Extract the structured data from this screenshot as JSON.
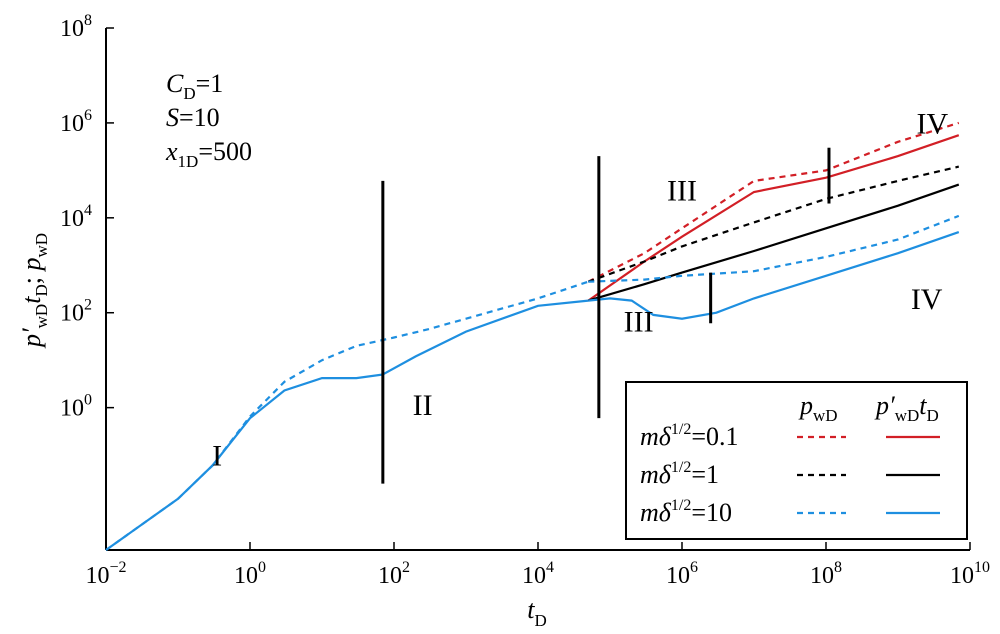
{
  "chart_data": {
    "type": "line",
    "xlabel": "t",
    "xlabel_sub": "D",
    "ylabel": "p′wDtD; pwD",
    "x_scale": "log",
    "y_scale": "log",
    "xlim": [
      0.01,
      10000000000
    ],
    "ylim": [
      0.001,
      100000000
    ],
    "x_ticks": [
      {
        "base": "10",
        "exp": "−2",
        "value": 0.01
      },
      {
        "base": "10",
        "exp": "0",
        "value": 1
      },
      {
        "base": "10",
        "exp": "2",
        "value": 100
      },
      {
        "base": "10",
        "exp": "4",
        "value": 10000
      },
      {
        "base": "10",
        "exp": "6",
        "value": 1000000
      },
      {
        "base": "10",
        "exp": "8",
        "value": 100000000
      },
      {
        "base": "10",
        "exp": "10",
        "value": 10000000000
      }
    ],
    "y_ticks": [
      {
        "base": "10",
        "exp": "0",
        "value": 1
      },
      {
        "base": "10",
        "exp": "2",
        "value": 100
      },
      {
        "base": "10",
        "exp": "4",
        "value": 10000
      },
      {
        "base": "10",
        "exp": "6",
        "value": 1000000
      },
      {
        "base": "10",
        "exp": "8",
        "value": 100000000
      }
    ],
    "params": [
      {
        "sym": "C",
        "sub": "D",
        "val": "=1"
      },
      {
        "sym": "S",
        "sub": "",
        "val": "=10"
      },
      {
        "sym": "x",
        "sub": "1D",
        "val": "=500"
      }
    ],
    "legend": {
      "header_pwd": "p",
      "header_pwd_sub": "wD",
      "header_deriv": "p′",
      "header_deriv_sub": "wD",
      "header_deriv_t": "t",
      "header_deriv_t_sub": "D",
      "label_prefix": "mδ",
      "label_sup": "1/2",
      "location": "lower-right"
    },
    "colors": {
      "red": "#d21f26",
      "black": "#000000",
      "blue": "#1e8fe0"
    },
    "common_pwd": {
      "x": [
        0.01,
        0.1,
        0.3,
        1,
        3,
        10,
        30,
        100,
        300,
        1000,
        10000,
        50000
      ],
      "y": [
        0.001,
        0.012,
        0.06,
        0.65,
        3.5,
        10,
        20,
        30,
        45,
        75,
        200,
        450
      ]
    },
    "common_deriv": {
      "x": [
        0.01,
        0.1,
        0.3,
        1,
        3,
        10,
        30,
        70,
        200,
        1000,
        10000,
        50000
      ],
      "y": [
        0.001,
        0.012,
        0.06,
        0.6,
        2.3,
        4.2,
        4.2,
        5,
        12,
        40,
        140,
        180
      ]
    },
    "series": [
      {
        "label_value": "=0.1",
        "color": "red",
        "pwd": {
          "x": [
            50000,
            300000,
            1000000,
            10000000,
            100000000,
            1000000000,
            7000000000
          ],
          "y": [
            450,
            1800,
            6000,
            60000,
            100000,
            400000,
            1000000
          ]
        },
        "deriv": {
          "x": [
            50000,
            300000,
            1000000,
            10000000,
            100000000,
            1000000000,
            7000000000
          ],
          "y": [
            180,
            1200,
            4000,
            35000,
            70000,
            200000,
            550000
          ]
        }
      },
      {
        "label_value": "=1",
        "color": "black",
        "pwd": {
          "x": [
            50000,
            300000,
            1000000,
            10000000,
            100000000,
            1000000000,
            7000000000
          ],
          "y": [
            450,
            1200,
            2500,
            8000,
            25000,
            60000,
            120000
          ]
        },
        "deriv": {
          "x": [
            50000,
            300000,
            1000000,
            10000000,
            100000000,
            1000000000,
            7000000000
          ],
          "y": [
            180,
            400,
            700,
            2000,
            6000,
            18000,
            50000
          ]
        }
      },
      {
        "label_value": "=10",
        "color": "blue",
        "pwd": {
          "x": [
            50000,
            300000,
            1000000,
            10000000,
            100000000,
            1000000000,
            7000000000
          ],
          "y": [
            450,
            500,
            600,
            750,
            1500,
            3500,
            11000
          ]
        },
        "deriv": {
          "x": [
            50000,
            100000,
            200000,
            400000,
            1000000,
            3000000,
            10000000,
            100000000,
            1000000000,
            7000000000
          ],
          "y": [
            180,
            200,
            180,
            90,
            75,
            100,
            200,
            600,
            1800,
            5000
          ]
        }
      }
    ],
    "vertical_markers": [
      {
        "x": 70,
        "y_low": 0.025,
        "y_high": 60000
      },
      {
        "x": 70000,
        "y_low": 0.6,
        "y_high": 200000
      },
      {
        "x": 2500000,
        "y_low": 60,
        "y_high": 700
      },
      {
        "x": 110000000,
        "y_low": 20000,
        "y_high": 300000
      }
    ],
    "region_labels": [
      {
        "text": "I",
        "x": 0.35,
        "y": 0.06
      },
      {
        "text": "II",
        "x": 250,
        "y": 0.7
      },
      {
        "text": "III",
        "x": 1000000,
        "y": 23000
      },
      {
        "text": "III",
        "x": 250000,
        "y": 40
      },
      {
        "text": "IV",
        "x": 3000000000,
        "y": 600000
      },
      {
        "text": "IV",
        "x": 2500000000,
        "y": 120
      }
    ]
  }
}
